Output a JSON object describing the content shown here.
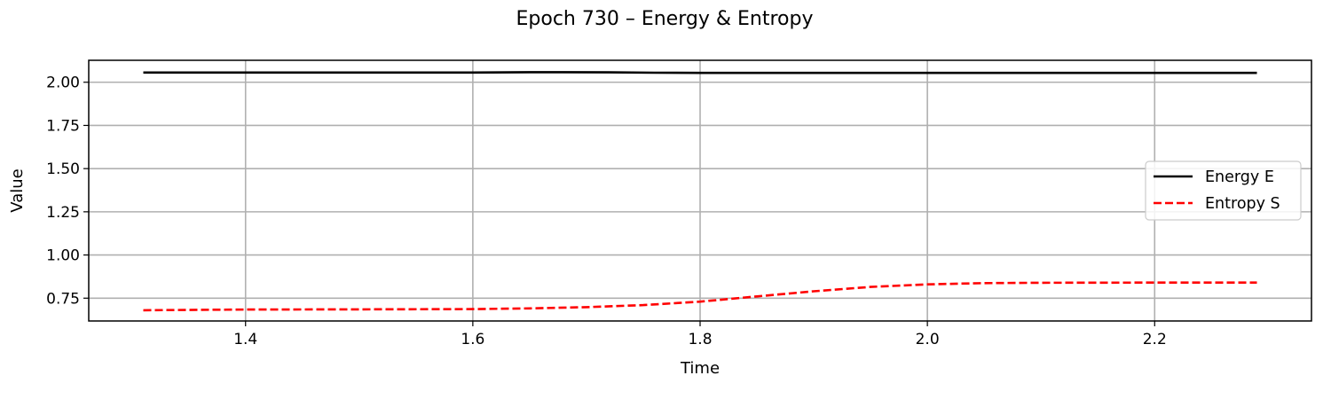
{
  "chart_data": {
    "type": "line",
    "title": "Epoch 730 – Energy & Entropy",
    "xlabel": "Time",
    "ylabel": "Value",
    "xlim": [
      1.262,
      2.338
    ],
    "ylim": [
      0.618,
      2.127
    ],
    "xticks": [
      1.4,
      1.6,
      1.8,
      2.0,
      2.2
    ],
    "xtick_labels": [
      "1.4",
      "1.6",
      "1.8",
      "2.0",
      "2.2"
    ],
    "yticks": [
      0.75,
      1.0,
      1.25,
      1.5,
      1.75,
      2.0
    ],
    "ytick_labels": [
      "0.75",
      "1.00",
      "1.25",
      "1.50",
      "1.75",
      "2.00"
    ],
    "grid": true,
    "legend_position": "center-right",
    "series": [
      {
        "name": "Energy E",
        "color": "#000000",
        "style": "solid",
        "x": [
          1.31,
          1.4,
          1.5,
          1.6,
          1.65,
          1.68,
          1.72,
          1.76,
          1.8,
          1.9,
          2.0,
          2.1,
          2.2,
          2.29
        ],
        "y": [
          2.056,
          2.056,
          2.056,
          2.056,
          2.058,
          2.058,
          2.057,
          2.055,
          2.054,
          2.054,
          2.054,
          2.054,
          2.054,
          2.054
        ]
      },
      {
        "name": "Entropy S",
        "color": "#ff0000",
        "style": "dashed",
        "x": [
          1.31,
          1.4,
          1.5,
          1.6,
          1.65,
          1.7,
          1.75,
          1.8,
          1.85,
          1.9,
          1.95,
          2.0,
          2.05,
          2.1,
          2.2,
          2.29
        ],
        "y": [
          0.68,
          0.684,
          0.685,
          0.687,
          0.691,
          0.698,
          0.71,
          0.73,
          0.76,
          0.79,
          0.815,
          0.83,
          0.837,
          0.839,
          0.84,
          0.84
        ]
      }
    ]
  }
}
